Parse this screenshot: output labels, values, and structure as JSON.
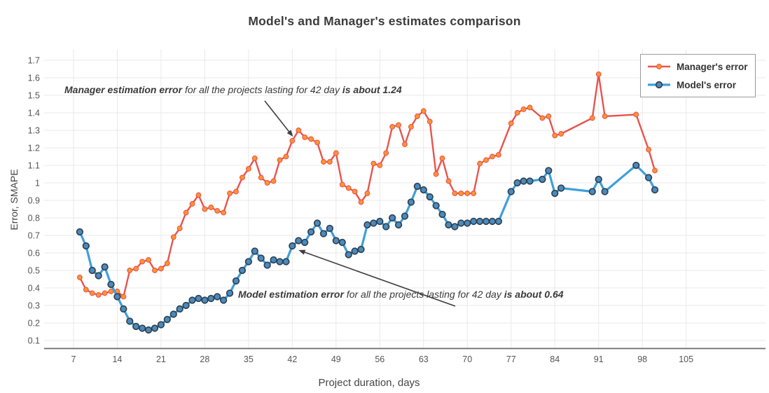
{
  "title": "Model's and Manager's estimates comparison",
  "axes": {
    "x": {
      "label": "Project duration, days",
      "tick_labels": [
        "7",
        "14",
        "21",
        "28",
        "35",
        "42",
        "49",
        "56",
        "63",
        "70",
        "77",
        "84",
        "91",
        "98",
        "105"
      ]
    },
    "y": {
      "label": "Error, SMAPE",
      "tick_labels": [
        "0.1",
        "0.2",
        "0.3",
        "0.4",
        "0.5",
        "0.6",
        "0.7",
        "0.8",
        "0.9",
        "1",
        "1.1",
        "1.2",
        "1.3",
        "1.4",
        "1.5",
        "1.6",
        "1.7"
      ]
    }
  },
  "legend": {
    "items": [
      {
        "label": "Manager's error",
        "series": "manager"
      },
      {
        "label": "Model's error",
        "series": "model"
      }
    ]
  },
  "annotations": [
    {
      "id": "annotation-manager",
      "parts": [
        {
          "text": "Manager estimation error",
          "bold": true
        },
        {
          "text": " for all the projects lasting for 42 day ",
          "bold": false
        },
        {
          "text": "is about 1.24",
          "bold": true
        }
      ]
    },
    {
      "id": "annotation-model",
      "parts": [
        {
          "text": "Model estimation error",
          "bold": true
        },
        {
          "text": " for all the projects lasting for 42 day ",
          "bold": false
        },
        {
          "text": "is about 0.64",
          "bold": true
        }
      ]
    }
  ],
  "colors": {
    "manager_line": "#e8544e",
    "manager_marker": "#ff9430",
    "model_line": "#3da0db",
    "model_marker": "#4a8bbf",
    "model_marker_stroke": "#30404f",
    "grid": "#e9e9e9",
    "axis_line": "#6a6a6a",
    "tick_text": "#555555",
    "arrow": "#3f3f3f"
  },
  "chart_data": {
    "type": "line",
    "title": "Model's and Manager's estimates comparison",
    "xlabel": "Project duration, days",
    "ylabel": "Error, SMAPE",
    "grid": true,
    "legend_position": "top-right",
    "x_ticks": [
      7,
      14,
      21,
      28,
      35,
      42,
      49,
      56,
      63,
      70,
      77,
      84,
      91,
      98,
      105
    ],
    "y_ticks": [
      0.1,
      0.2,
      0.3,
      0.4,
      0.5,
      0.6,
      0.7,
      0.8,
      0.9,
      1,
      1.1,
      1.2,
      1.3,
      1.4,
      1.5,
      1.6,
      1.7
    ],
    "xlim": [
      2.3,
      117.7
    ],
    "ylim": [
      0.054,
      1.764
    ],
    "x": [
      8,
      9,
      10,
      11,
      12,
      13,
      14,
      15,
      16,
      17,
      18,
      19,
      20,
      21,
      22,
      23,
      24,
      25,
      26,
      27,
      28,
      29,
      30,
      31,
      32,
      33,
      34,
      35,
      36,
      37,
      38,
      39,
      40,
      41,
      42,
      43,
      44,
      45,
      46,
      47,
      48,
      49,
      50,
      51,
      52,
      53,
      54,
      55,
      56,
      57,
      58,
      59,
      60,
      61,
      62,
      63,
      64,
      65,
      66,
      67,
      68,
      69,
      70,
      71,
      72,
      73,
      74,
      75,
      77,
      78,
      79,
      80,
      82,
      83,
      84,
      85,
      90,
      91,
      92,
      97,
      99,
      100
    ],
    "series": [
      {
        "name": "Manager's error",
        "y": [
          0.46,
          0.39,
          0.37,
          0.36,
          0.37,
          0.38,
          0.38,
          0.35,
          0.5,
          0.51,
          0.55,
          0.56,
          0.5,
          0.51,
          0.54,
          0.69,
          0.74,
          0.83,
          0.88,
          0.93,
          0.85,
          0.86,
          0.84,
          0.83,
          0.94,
          0.95,
          1.03,
          1.08,
          1.14,
          1.03,
          1.0,
          1.01,
          1.13,
          1.15,
          1.24,
          1.3,
          1.26,
          1.25,
          1.23,
          1.12,
          1.12,
          1.17,
          0.99,
          0.97,
          0.95,
          0.89,
          0.94,
          1.11,
          1.1,
          1.17,
          1.32,
          1.33,
          1.22,
          1.32,
          1.38,
          1.41,
          1.35,
          1.05,
          1.14,
          1.01,
          0.94,
          0.94,
          0.94,
          0.94,
          1.11,
          1.13,
          1.15,
          1.16,
          1.34,
          1.4,
          1.42,
          1.43,
          1.37,
          1.38,
          1.27,
          1.28,
          1.37,
          1.62,
          1.38,
          1.39,
          1.19,
          1.07
        ]
      },
      {
        "name": "Model's error",
        "y": [
          0.72,
          0.64,
          0.5,
          0.47,
          0.52,
          0.42,
          0.35,
          0.28,
          0.21,
          0.18,
          0.17,
          0.16,
          0.17,
          0.19,
          0.22,
          0.25,
          0.28,
          0.3,
          0.33,
          0.34,
          0.33,
          0.34,
          0.35,
          0.33,
          0.37,
          0.44,
          0.5,
          0.55,
          0.61,
          0.57,
          0.53,
          0.56,
          0.55,
          0.55,
          0.64,
          0.67,
          0.66,
          0.72,
          0.77,
          0.71,
          0.74,
          0.67,
          0.66,
          0.59,
          0.61,
          0.62,
          0.76,
          0.77,
          0.78,
          0.75,
          0.8,
          0.76,
          0.81,
          0.89,
          0.98,
          0.96,
          0.92,
          0.87,
          0.82,
          0.76,
          0.75,
          0.77,
          0.77,
          0.78,
          0.78,
          0.78,
          0.78,
          0.78,
          0.95,
          1.0,
          1.01,
          1.01,
          1.02,
          1.07,
          0.94,
          0.97,
          0.95,
          1.02,
          0.95,
          1.1,
          1.03,
          0.96
        ]
      }
    ],
    "annotations": [
      {
        "text": "Manager estimation error for all the projects lasting for 42 day is about 1.24",
        "points_to": {
          "x": 42,
          "y": 1.24
        }
      },
      {
        "text": "Model estimation error for all the projects lasting for 42 day is about 0.64",
        "points_to": {
          "x": 42,
          "y": 0.64
        }
      }
    ]
  }
}
